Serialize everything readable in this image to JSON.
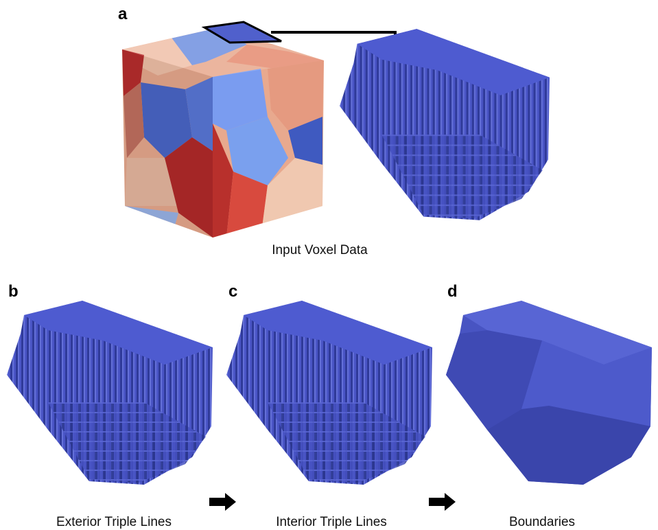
{
  "panels": [
    {
      "label": "a",
      "caption": "Input Voxel Data"
    },
    {
      "label": "b",
      "caption": "Exterior Triple Lines"
    },
    {
      "label": "c",
      "caption": "Interior Triple Lines"
    },
    {
      "label": "d",
      "caption": "Boundaries"
    }
  ]
}
